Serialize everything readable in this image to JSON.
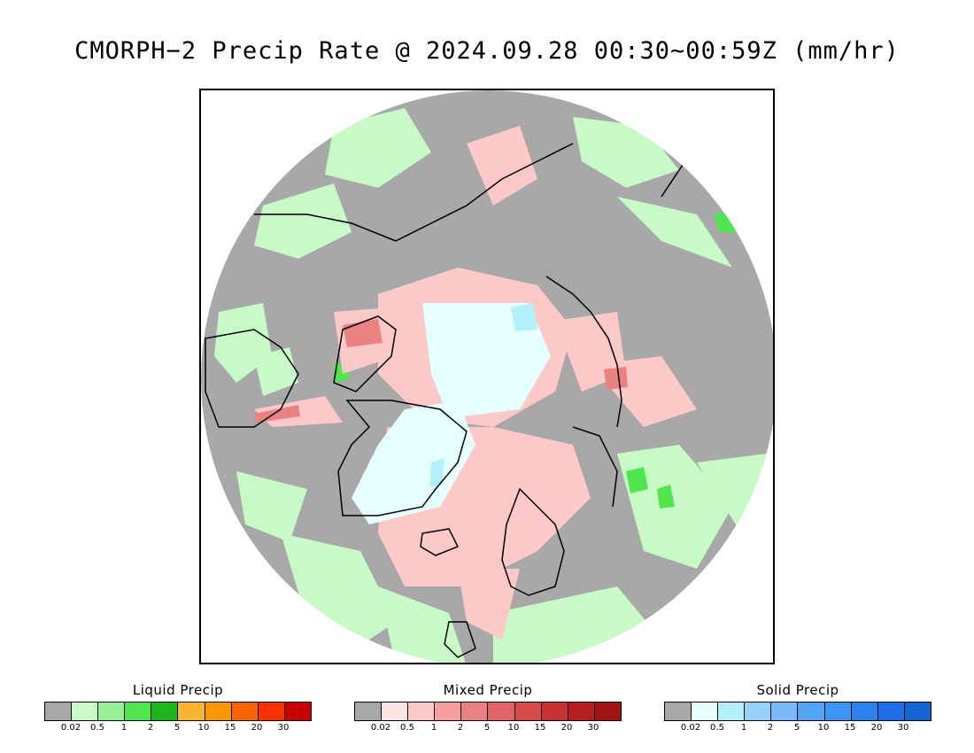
{
  "title": "CMORPH−2 Precip Rate @ 2024.09.28 00:30~00:59Z (mm/hr)",
  "colors": {
    "background_gray": "#a8a8a8",
    "ocean_white": "#ffffff",
    "coastline": "#000000"
  },
  "legends": [
    {
      "id": "liquid",
      "title": "Liquid Precip",
      "colors": [
        "#a8a8a8",
        "#c8fac8",
        "#96f096",
        "#50e650",
        "#1eb41e",
        "#fab432",
        "#fa9600",
        "#fa6400",
        "#fa3200",
        "#c80000"
      ],
      "ticks": [
        "0.02",
        "0.5",
        "1",
        "2",
        "5",
        "10",
        "15",
        "20",
        "30"
      ]
    },
    {
      "id": "mixed",
      "title": "Mixed Precip",
      "colors": [
        "#a8a8a8",
        "#fde4e4",
        "#fcc8c8",
        "#f5a0a0",
        "#eb8282",
        "#e16464",
        "#d74b4b",
        "#c83232",
        "#b41e1e",
        "#a01414"
      ],
      "ticks": [
        "0.02",
        "0.5",
        "1",
        "2",
        "5",
        "10",
        "15",
        "20",
        "30"
      ]
    },
    {
      "id": "solid",
      "title": "Solid Precip",
      "colors": [
        "#a8a8a8",
        "#e6ffff",
        "#b4f0fa",
        "#96d2fa",
        "#78b9fa",
        "#50a5f5",
        "#3c96f5",
        "#2882f0",
        "#1e6eeb",
        "#1464d2"
      ],
      "ticks": [
        "0.02",
        "0.5",
        "1",
        "2",
        "5",
        "10",
        "15",
        "20",
        "30"
      ]
    }
  ]
}
